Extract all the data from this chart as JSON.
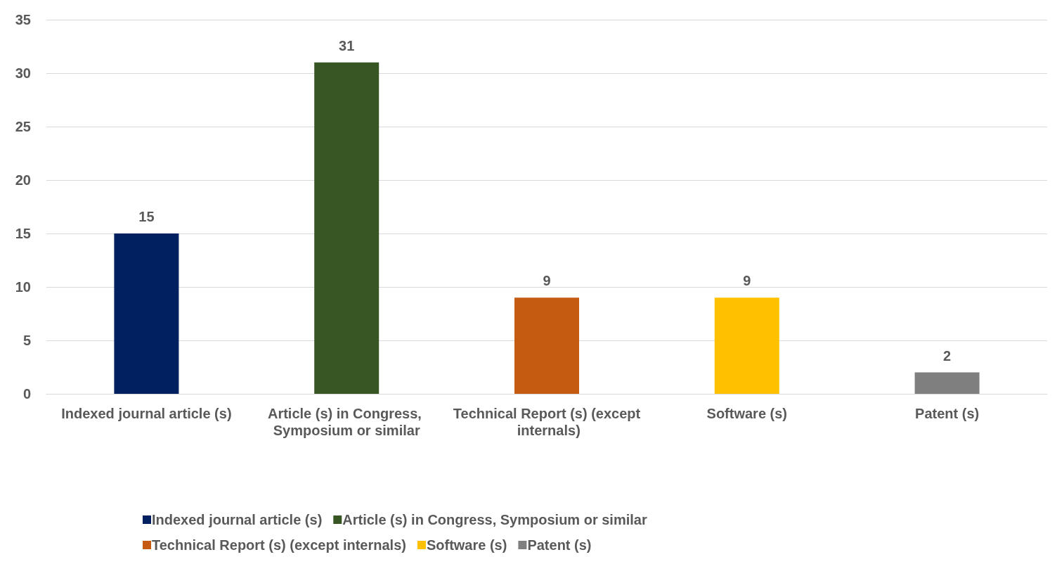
{
  "chart_data": {
    "type": "bar",
    "categories": [
      "Indexed journal article (s)",
      "Article (s) in Congress, Symposium or similar",
      "Technical Report (s) (except internals)",
      "Software (s)",
      "Patent (s)"
    ],
    "stacked": true,
    "series": [
      {
        "name": "Indexed journal article (s)",
        "color": "#002060",
        "values": [
          15,
          null,
          null,
          null,
          null
        ]
      },
      {
        "name": "Article (s) in Congress, Symposium or similar",
        "color": "#375623",
        "values": [
          null,
          31,
          null,
          null,
          null
        ]
      },
      {
        "name": "Technical Report (s) (except internals)",
        "color": "#c55a11",
        "values": [
          null,
          null,
          9,
          null,
          null
        ]
      },
      {
        "name": "Software (s)",
        "color": "#ffc000",
        "values": [
          null,
          null,
          null,
          9,
          null
        ]
      },
      {
        "name": "Patent (s)",
        "color": "#7f7f7f",
        "values": [
          null,
          null,
          null,
          null,
          2
        ]
      }
    ],
    "ylim": [
      0,
      35
    ],
    "yticks": [
      0,
      5,
      10,
      15,
      20,
      25,
      30,
      35
    ],
    "grid": "y",
    "data_labels": true,
    "legend": "bottom"
  }
}
